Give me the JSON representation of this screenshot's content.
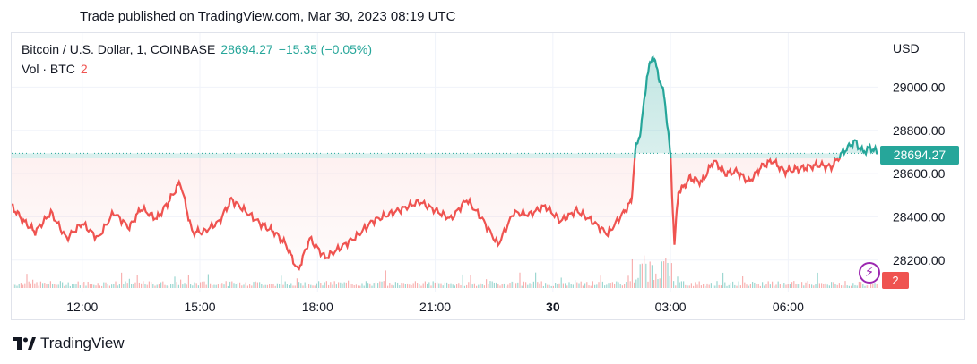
{
  "header": {
    "published": "Trade published on TradingView.com, Mar 30, 2023 08:19 UTC"
  },
  "legend": {
    "symbol": "Bitcoin / U.S. Dollar, 1, COINBASE",
    "last": "28694.27",
    "change": "−15.35 (−0.05%)",
    "vol_label": "Vol · BTC",
    "vol_value": "2"
  },
  "currency": "USD",
  "price_tag": "28694.27",
  "vol_tag": "2",
  "footer": {
    "brand": "TradingView"
  },
  "colors": {
    "up": "#26a69a",
    "down": "#ef5350",
    "grid": "#f0f3fa",
    "pine": "#9c27b0"
  },
  "chart_data": {
    "type": "area",
    "ylim": [
      28050,
      29250
    ],
    "y_ticks": [
      {
        "value": 28200,
        "label": "28200.00"
      },
      {
        "value": 28400,
        "label": "28400.00"
      },
      {
        "value": 28600,
        "label": "28600.00"
      },
      {
        "value": 28800,
        "label": "28800.00"
      },
      {
        "value": 29000,
        "label": "29000.00"
      }
    ],
    "x_range_hours": [
      10.2,
      32.3
    ],
    "x_ticks": [
      {
        "hour": 12,
        "label": "12:00",
        "bold": false
      },
      {
        "hour": 15,
        "label": "15:00",
        "bold": false
      },
      {
        "hour": 18,
        "label": "18:00",
        "bold": false
      },
      {
        "hour": 21,
        "label": "21:00",
        "bold": false
      },
      {
        "hour": 24,
        "label": "30",
        "bold": true
      },
      {
        "hour": 27,
        "label": "03:00",
        "bold": false
      },
      {
        "hour": 30,
        "label": "06:00",
        "bold": false
      }
    ],
    "baseline": 28694,
    "series": [
      {
        "x": [
          10.2,
          10.5,
          10.8,
          11.2,
          11.6,
          12.0,
          12.4,
          12.8,
          13.2,
          13.5,
          13.9,
          14.2,
          14.5,
          14.8,
          15.1,
          15.5,
          15.8,
          16.2,
          16.6,
          16.9,
          17.2,
          17.5,
          17.8,
          18.2,
          18.6,
          19.0,
          19.4,
          19.8,
          20.2,
          20.6,
          21.0,
          21.4,
          21.8,
          22.2,
          22.6,
          23.0,
          23.4,
          23.8,
          24.2,
          24.6,
          25.0,
          25.4,
          25.8,
          26.0,
          26.1,
          26.25,
          26.4,
          26.55,
          26.7,
          26.85,
          27.0,
          27.1,
          27.2,
          27.3,
          27.5,
          27.8,
          28.1,
          28.4,
          28.7,
          29.0,
          29.3,
          29.6,
          29.9,
          30.2,
          30.5,
          30.8,
          31.1,
          31.4,
          31.7,
          31.9,
          32.1,
          32.3
        ],
        "y": [
          28450,
          28380,
          28330,
          28420,
          28300,
          28370,
          28300,
          28420,
          28350,
          28440,
          28390,
          28470,
          28560,
          28330,
          28330,
          28380,
          28480,
          28420,
          28360,
          28330,
          28270,
          28150,
          28300,
          28210,
          28260,
          28310,
          28380,
          28410,
          28440,
          28470,
          28430,
          28390,
          28480,
          28390,
          28270,
          28420,
          28410,
          28450,
          28380,
          28430,
          28380,
          28320,
          28420,
          28470,
          28700,
          28810,
          29050,
          29150,
          29050,
          28950,
          28680,
          28270,
          28520,
          28530,
          28580,
          28560,
          28660,
          28600,
          28610,
          28560,
          28630,
          28660,
          28610,
          28620,
          28630,
          28640,
          28630,
          28700,
          28750,
          28700,
          28720,
          28694
        ]
      }
    ]
  }
}
